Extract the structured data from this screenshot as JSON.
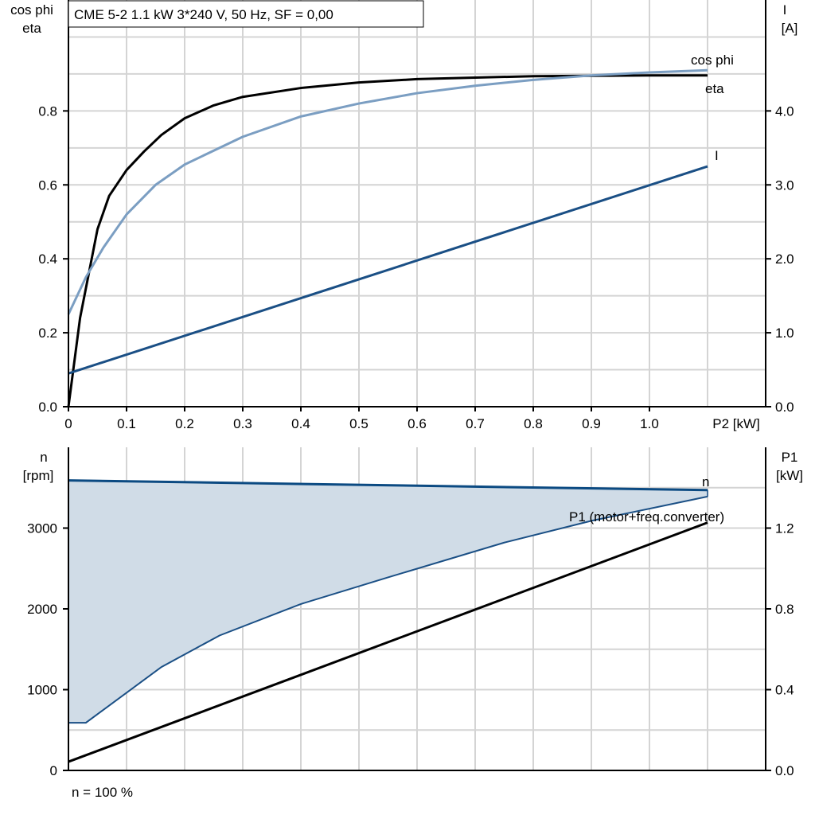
{
  "title": "CME 5-2   1.1 kW   3*240 V, 50 Hz, SF = 0,00",
  "footnote": "n = 100 %",
  "chart_data": [
    {
      "type": "line",
      "xlabel": "P2 [kW]",
      "ylabel_left": [
        "cos phi",
        "eta"
      ],
      "ylabel_right": [
        "I",
        "[A]"
      ],
      "xlim": [
        0,
        1.2
      ],
      "ylim_left": [
        0,
        1.1
      ],
      "ylim_right": [
        0,
        5.5
      ],
      "grid": true,
      "x_ticks": [
        "0",
        "0.1",
        "0.2",
        "0.3",
        "0.4",
        "0.5",
        "0.6",
        "0.7",
        "0.8",
        "0.9",
        "1.0"
      ],
      "x_tick_values": [
        0,
        0.1,
        0.2,
        0.3,
        0.4,
        0.5,
        0.6,
        0.7,
        0.8,
        0.9,
        1.0
      ],
      "y_ticks_left": [
        "0.0",
        "0.2",
        "0.4",
        "0.6",
        "0.8"
      ],
      "y_tick_values_left": [
        0,
        0.2,
        0.4,
        0.6,
        0.8
      ],
      "y_ticks_right": [
        "0.0",
        "1.0",
        "2.0",
        "3.0",
        "4.0"
      ],
      "y_tick_values_right": [
        0,
        1,
        2,
        3,
        4
      ],
      "series": [
        {
          "name": "eta",
          "axis": "left",
          "color": "#000000",
          "x": [
            0,
            0.02,
            0.05,
            0.07,
            0.1,
            0.13,
            0.16,
            0.2,
            0.25,
            0.3,
            0.4,
            0.5,
            0.6,
            0.8,
            1.0,
            1.1
          ],
          "y": [
            0,
            0.24,
            0.48,
            0.57,
            0.64,
            0.69,
            0.735,
            0.78,
            0.815,
            0.838,
            0.862,
            0.877,
            0.886,
            0.894,
            0.896,
            0.896
          ]
        },
        {
          "name": "cos phi",
          "axis": "left",
          "color": "#7b9ec2",
          "x": [
            0,
            0.03,
            0.06,
            0.1,
            0.15,
            0.2,
            0.3,
            0.4,
            0.5,
            0.6,
            0.7,
            0.8,
            0.9,
            1.0,
            1.1
          ],
          "y": [
            0.25,
            0.35,
            0.43,
            0.52,
            0.6,
            0.655,
            0.73,
            0.785,
            0.82,
            0.848,
            0.868,
            0.884,
            0.896,
            0.904,
            0.91
          ]
        },
        {
          "name": "I",
          "axis": "right",
          "color": "#1a4f85",
          "x": [
            0,
            1.1
          ],
          "y": [
            0.45,
            3.25
          ]
        }
      ]
    },
    {
      "type": "area",
      "xlim": [
        0,
        1.2
      ],
      "ylabel_left": [
        "n",
        "[rpm]"
      ],
      "ylabel_right": [
        "P1",
        "[kW]"
      ],
      "ylim_left": [
        0,
        4000
      ],
      "ylim_right": [
        0,
        1.6
      ],
      "grid": true,
      "y_ticks_left": [
        "0",
        "1000",
        "2000",
        "3000"
      ],
      "y_tick_values_left": [
        0,
        1000,
        2000,
        3000
      ],
      "y_ticks_right": [
        "0.0",
        "0.4",
        "0.8",
        "1.2"
      ],
      "y_tick_values_right": [
        0,
        0.4,
        0.8,
        1.2
      ],
      "area": {
        "color": "#d0dce7",
        "edge_color": "#1a4f85",
        "upper_x": [
          0,
          1.1
        ],
        "upper_y": [
          3590,
          3470
        ],
        "lower_x": [
          0,
          0.03,
          0.16,
          0.26,
          0.4,
          0.55,
          0.75,
          0.9,
          1.1
        ],
        "lower_y": [
          590,
          590,
          1280,
          1670,
          2060,
          2390,
          2820,
          3090,
          3390
        ]
      },
      "series": [
        {
          "name": "n",
          "axis": "left",
          "color": "#0b4a82",
          "x": [
            0,
            1.1
          ],
          "y": [
            3590,
            3470
          ]
        },
        {
          "name": "P1 (motor+freq.converter)",
          "axis": "right",
          "color": "#000000",
          "x": [
            0,
            1.1
          ],
          "y": [
            0.043,
            1.227
          ]
        }
      ]
    }
  ]
}
